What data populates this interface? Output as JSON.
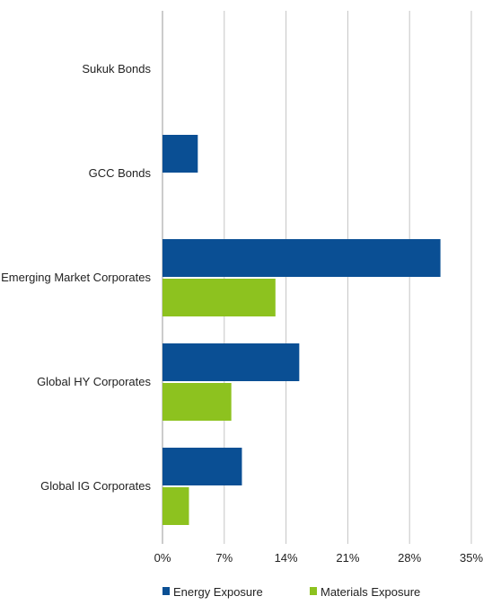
{
  "chart_data": {
    "type": "bar",
    "orientation": "horizontal",
    "categories": [
      "Sukuk Bonds",
      "GCC Bonds",
      "Emerging Market Corporates",
      "Global HY Corporates",
      "Global IG Corporates"
    ],
    "series": [
      {
        "name": "Energy Exposure",
        "color": "#0a4f94",
        "values": [
          0,
          4,
          31.5,
          15.5,
          9
        ]
      },
      {
        "name": "Materials Exposure",
        "color": "#8dc21f",
        "values": [
          0,
          0,
          12.8,
          7.8,
          3
        ]
      }
    ],
    "x_ticks": [
      "0%",
      "7%",
      "14%",
      "21%",
      "28%",
      "35%"
    ],
    "xlim": [
      0,
      35
    ],
    "grid": true,
    "legend": "bottom"
  }
}
